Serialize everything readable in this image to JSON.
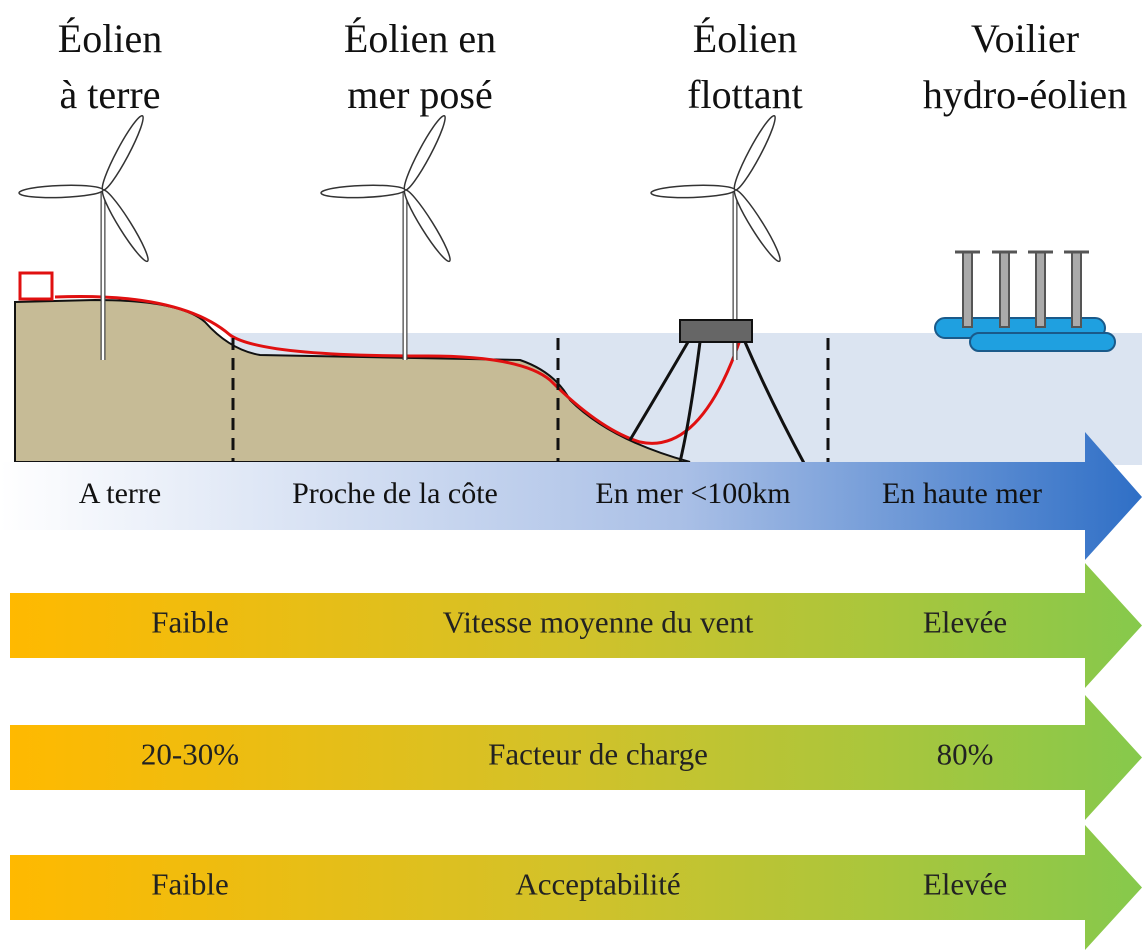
{
  "headings": [
    {
      "lines": [
        "Éolien",
        "à terre"
      ]
    },
    {
      "lines": [
        "Éolien en",
        "mer posé"
      ]
    },
    {
      "lines": [
        "Éolien",
        "flottant"
      ]
    },
    {
      "lines": [
        "Voilier",
        "hydro-éolien"
      ]
    }
  ],
  "zones": [
    "A terre",
    "Proche de la côte",
    "En mer <100km",
    "En haute mer"
  ],
  "bars": [
    {
      "left": "Faible",
      "center": "Vitesse moyenne du vent",
      "right": "Elevée"
    },
    {
      "left": "20-30%",
      "center": "Facteur de charge",
      "right": "80%"
    },
    {
      "left": "Faible",
      "center": "Acceptabilité",
      "right": "Elevée"
    }
  ]
}
